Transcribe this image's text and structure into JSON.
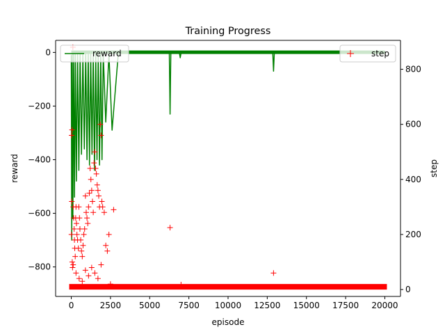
{
  "chart_data": {
    "type": "line",
    "title": "Training Progress",
    "xlabel": "episode",
    "ylabel_left": "reward",
    "ylabel_right": "step",
    "xlim": [
      -1000,
      21000
    ],
    "ylim_left": [
      -910,
      45
    ],
    "ylim_right": [
      -25,
      905
    ],
    "x_ticks": [
      0,
      2500,
      5000,
      7500,
      10000,
      12500,
      15000,
      17500,
      20000
    ],
    "x_tick_labels": [
      "0",
      "2500",
      "5000",
      "7500",
      "10000",
      "12500",
      "15000",
      "17500",
      "20000"
    ],
    "y_left_ticks": [
      0,
      -200,
      -400,
      -600,
      -800
    ],
    "y_left_tick_labels": [
      "0",
      "−200",
      "−400",
      "−600",
      "−800"
    ],
    "y_right_ticks": [
      0,
      200,
      400,
      600,
      800
    ],
    "y_right_tick_labels": [
      "0",
      "200",
      "400",
      "600",
      "800"
    ],
    "grid": false,
    "series": [
      {
        "name": "reward",
        "axis": "left",
        "style": "line",
        "color": "#008000",
        "x": [
          0,
          30,
          60,
          100,
          150,
          200,
          260,
          320,
          400,
          480,
          560,
          650,
          740,
          830,
          920,
          1000,
          1080,
          1160,
          1240,
          1320,
          1400,
          1480,
          1560,
          1640,
          1720,
          1800,
          1880,
          1960,
          2040,
          2200,
          2400,
          2600,
          3000,
          4000,
          5000,
          6000,
          6250,
          6300,
          6350,
          6500,
          6900,
          6950,
          7000,
          8000,
          10000,
          12000,
          12850,
          12900,
          12950,
          14000,
          16000,
          18000,
          20000
        ],
        "y": [
          -10,
          -700,
          -5,
          -620,
          -5,
          -540,
          -8,
          -480,
          -5,
          -440,
          -5,
          -380,
          -8,
          -360,
          -5,
          -400,
          -5,
          -420,
          -5,
          -380,
          -5,
          -440,
          -6,
          -400,
          -5,
          -420,
          -5,
          -400,
          -5,
          -260,
          -5,
          -290,
          -2,
          -2,
          -3,
          -2,
          -2,
          -230,
          -2,
          -2,
          -3,
          -20,
          -2,
          -2,
          -2,
          -2,
          -2,
          -70,
          -2,
          -2,
          -3,
          -2,
          -2
        ]
      },
      {
        "name": "step",
        "axis": "right",
        "style": "+",
        "color": "#ff0000",
        "x": [
          100,
          50,
          20,
          30,
          10,
          60,
          80,
          120,
          150,
          180,
          200,
          220,
          250,
          280,
          300,
          330,
          360,
          400,
          450,
          480,
          520,
          550,
          600,
          650,
          700,
          750,
          800,
          850,
          900,
          950,
          1000,
          1050,
          1100,
          1150,
          1200,
          1250,
          1300,
          1350,
          1400,
          1450,
          1500,
          1550,
          1600,
          1650,
          1700,
          1750,
          1800,
          1850,
          1900,
          1950,
          2000,
          2100,
          2200,
          2300,
          2400,
          2500,
          2700,
          120,
          300,
          500,
          700,
          900,
          1100,
          1300,
          1500,
          1700,
          1900,
          6300,
          12900,
          7000
        ],
        "y": [
          880,
          580,
          560,
          320,
          200,
          100,
          80,
          300,
          260,
          220,
          180,
          150,
          120,
          260,
          300,
          240,
          200,
          180,
          150,
          300,
          260,
          220,
          180,
          140,
          120,
          160,
          200,
          220,
          340,
          280,
          260,
          240,
          300,
          350,
          440,
          400,
          360,
          320,
          280,
          460,
          500,
          440,
          420,
          380,
          360,
          340,
          300,
          600,
          560,
          320,
          300,
          280,
          160,
          140,
          200,
          20,
          290,
          90,
          60,
          40,
          30,
          70,
          50,
          80,
          60,
          40,
          90,
          225,
          60,
          18
        ]
      }
    ],
    "step_baseline": {
      "x_from": 0,
      "x_to": 20000,
      "y": 10
    },
    "legends": [
      {
        "position": "upper-left",
        "entries": [
          "reward"
        ]
      },
      {
        "position": "upper-right",
        "entries": [
          "step"
        ]
      }
    ]
  }
}
